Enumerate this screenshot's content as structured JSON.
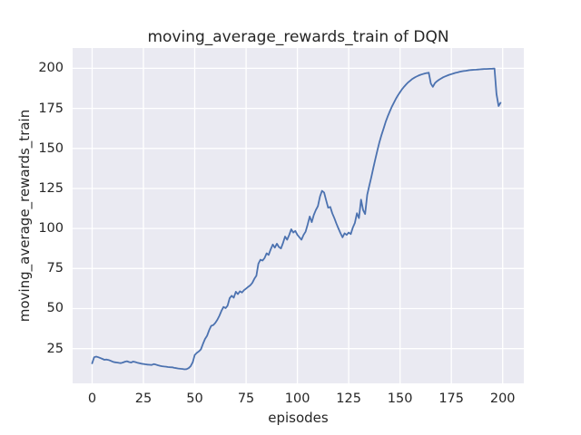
{
  "figure": {
    "kind": "matplotlib-seaborn line plot"
  },
  "chart_data": {
    "type": "line",
    "title": "moving_average_rewards_train of DQN",
    "xlabel": "episodes",
    "ylabel": "moving_average_rewards_train",
    "x_ticks": [
      0,
      25,
      50,
      75,
      100,
      125,
      150,
      175,
      200
    ],
    "y_ticks": [
      25,
      50,
      75,
      100,
      125,
      150,
      175,
      200
    ],
    "xlim": [
      -9.5,
      210.3
    ],
    "ylim": [
      3.3,
      212.7
    ],
    "grid": true,
    "legend": "none",
    "style": {
      "figure_bg": "#ffffff",
      "axes_bg": "#eaeaf2",
      "grid_color": "#ffffff",
      "line_color": "#4c72b0",
      "text_color": "#262626"
    },
    "series": [
      {
        "name": "moving_average_rewards_train",
        "x": {
          "start": 0,
          "step": 1
        },
        "values": [
          15.8,
          19.6,
          20.0,
          19.6,
          19.1,
          18.6,
          18.0,
          18.2,
          17.9,
          17.4,
          16.8,
          16.5,
          16.3,
          16.1,
          15.9,
          16.3,
          16.8,
          17.1,
          16.6,
          16.3,
          16.9,
          16.6,
          16.2,
          15.9,
          15.6,
          15.4,
          15.2,
          15.0,
          14.9,
          14.8,
          15.3,
          15.0,
          14.6,
          14.3,
          14.0,
          13.8,
          13.7,
          13.5,
          13.4,
          13.3,
          13.0,
          12.8,
          12.6,
          12.4,
          12.3,
          12.1,
          12.2,
          12.8,
          14.0,
          16.5,
          21.0,
          22.3,
          23.3,
          24.5,
          28.0,
          31.0,
          33.0,
          36.5,
          39.2,
          39.7,
          41.0,
          43.0,
          45.5,
          48.5,
          51.0,
          50.3,
          51.8,
          56.5,
          58.0,
          56.8,
          60.5,
          59.0,
          60.8,
          60.0,
          61.5,
          62.5,
          63.5,
          64.5,
          66.0,
          68.5,
          70.5,
          78.0,
          80.5,
          80.0,
          81.5,
          84.5,
          83.5,
          87.0,
          90.0,
          88.0,
          90.5,
          88.5,
          87.5,
          91.0,
          95.0,
          93.0,
          96.0,
          99.5,
          97.5,
          98.5,
          96.0,
          94.5,
          93.0,
          96.0,
          98.0,
          102.5,
          107.5,
          104.0,
          108.5,
          111.5,
          114.0,
          120.0,
          123.5,
          122.5,
          117.5,
          113.0,
          113.5,
          109.5,
          106.5,
          103.0,
          100.0,
          97.0,
          94.5,
          97.0,
          96.0,
          97.5,
          96.5,
          100.5,
          103.5,
          109.5,
          106.5,
          118.0,
          111.5,
          109.0,
          121.0,
          126.5,
          132.0,
          138.0,
          143.5,
          149.0,
          154.0,
          158.5,
          162.5,
          166.5,
          170.0,
          173.0,
          176.0,
          178.6,
          181.0,
          183.2,
          185.2,
          187.0,
          188.6,
          190.0,
          191.3,
          192.4,
          193.4,
          194.2,
          194.9,
          195.5,
          196.0,
          196.4,
          196.8,
          197.1,
          197.3,
          190.5,
          188.5,
          190.8,
          192.0,
          192.9,
          193.7,
          194.4,
          195.0,
          195.5,
          196.0,
          196.4,
          196.8,
          197.2,
          197.5,
          197.8,
          198.1,
          198.3,
          198.5,
          198.7,
          198.9,
          199.0,
          199.1,
          199.2,
          199.3,
          199.4,
          199.5,
          199.6,
          199.65,
          199.7,
          199.75,
          199.8,
          199.9,
          184.0,
          176.5,
          178.5
        ]
      }
    ]
  }
}
